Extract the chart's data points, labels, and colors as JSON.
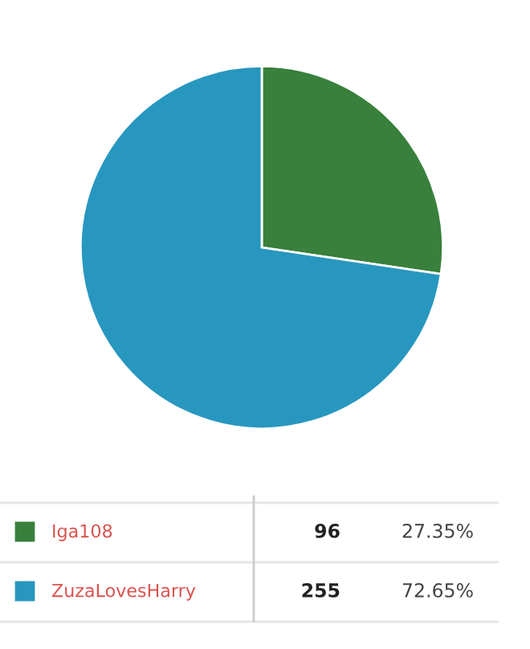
{
  "chart_data": {
    "type": "pie",
    "categories": [
      "Iga108",
      "ZuzaLovesHarry"
    ],
    "values": [
      96,
      255
    ],
    "colors": [
      "#38803c",
      "#2897bf"
    ],
    "value_labels": [
      "96",
      "255"
    ],
    "annotations": [
      "27.35%",
      "72.65%"
    ],
    "legend": "bottom"
  }
}
